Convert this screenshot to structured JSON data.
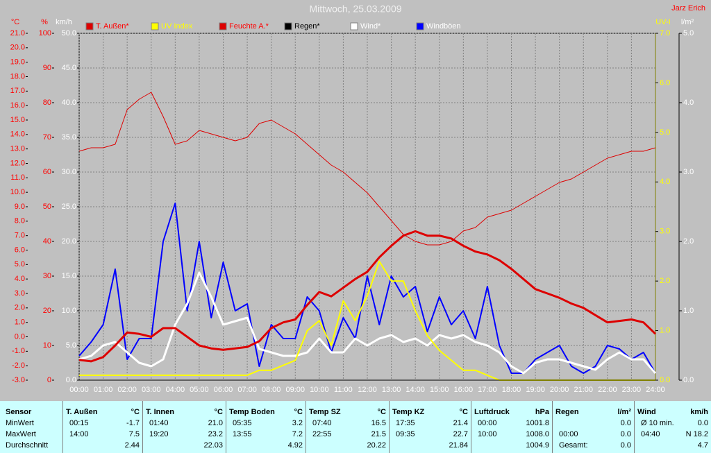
{
  "chart_data": {
    "type": "line",
    "title": "Mittwoch, 25.03.2009",
    "author": "Jarz Erich",
    "xlim": [
      0,
      24
    ],
    "xticks": [
      {
        "value": 0,
        "label": "00:00"
      },
      {
        "value": 1,
        "label": "01:00"
      },
      {
        "value": 2,
        "label": "02:00"
      },
      {
        "value": 3,
        "label": "03:00"
      },
      {
        "value": 4,
        "label": "04:00"
      },
      {
        "value": 5,
        "label": "05:00"
      },
      {
        "value": 6,
        "label": "06:00"
      },
      {
        "value": 7,
        "label": "07:00"
      },
      {
        "value": 8,
        "label": "08:00"
      },
      {
        "value": 9,
        "label": "09:00"
      },
      {
        "value": 10,
        "label": "10:00"
      },
      {
        "value": 11,
        "label": "11:00"
      },
      {
        "value": 12,
        "label": "12:00"
      },
      {
        "value": 13,
        "label": "13:00"
      },
      {
        "value": 14,
        "label": "14:00"
      },
      {
        "value": 15,
        "label": "15:00"
      },
      {
        "value": 16,
        "label": "16:00"
      },
      {
        "value": 17,
        "label": "17:00"
      },
      {
        "value": 18,
        "label": "18:00"
      },
      {
        "value": 19,
        "label": "19:00"
      },
      {
        "value": 20,
        "label": "20:00"
      },
      {
        "value": 21,
        "label": "21:00"
      },
      {
        "value": 22,
        "label": "22:00"
      },
      {
        "value": 23,
        "label": "23:00"
      },
      {
        "value": 24,
        "label": "24:00"
      }
    ],
    "grid": true,
    "axes": [
      {
        "label": "°C",
        "color": "#ff0000",
        "side": "left",
        "lim": [
          -3,
          21
        ],
        "ticks": [
          {
            "value": -3,
            "label": "-3.0"
          },
          {
            "value": -2,
            "label": "-2.0"
          },
          {
            "value": -1,
            "label": "-1.0"
          },
          {
            "value": 0,
            "label": "0.0"
          },
          {
            "value": 1,
            "label": "1.0"
          },
          {
            "value": 2,
            "label": "2.0"
          },
          {
            "value": 3,
            "label": "3.0"
          },
          {
            "value": 4,
            "label": "4.0"
          },
          {
            "value": 5,
            "label": "5.0"
          },
          {
            "value": 6,
            "label": "6.0"
          },
          {
            "value": 7,
            "label": "7.0"
          },
          {
            "value": 8,
            "label": "8.0"
          },
          {
            "value": 9,
            "label": "9.0"
          },
          {
            "value": 10,
            "label": "10.0"
          },
          {
            "value": 11,
            "label": "11.0"
          },
          {
            "value": 12,
            "label": "12.0"
          },
          {
            "value": 13,
            "label": "13.0"
          },
          {
            "value": 14,
            "label": "14.0"
          },
          {
            "value": 15,
            "label": "15.0"
          },
          {
            "value": 16,
            "label": "16.0"
          },
          {
            "value": 17,
            "label": "17.0"
          },
          {
            "value": 18,
            "label": "18.0"
          },
          {
            "value": 19,
            "label": "19.0"
          },
          {
            "value": 20,
            "label": "20.0"
          },
          {
            "value": 21,
            "label": "21.0"
          }
        ]
      },
      {
        "label": "%",
        "color": "#ff0000",
        "side": "left",
        "lim": [
          0,
          100
        ],
        "ticks": [
          0,
          10,
          20,
          30,
          40,
          50,
          60,
          70,
          80,
          90,
          100
        ]
      },
      {
        "label": "km/h",
        "color": "#ffffff",
        "side": "left",
        "lim": [
          0,
          50
        ],
        "ticks": [
          {
            "value": 0,
            "label": "0.0"
          },
          {
            "value": 5,
            "label": "5.0"
          },
          {
            "value": 10,
            "label": "10.0"
          },
          {
            "value": 15,
            "label": "15.0"
          },
          {
            "value": 20,
            "label": "20.0"
          },
          {
            "value": 25,
            "label": "25.0"
          },
          {
            "value": 30,
            "label": "30.0"
          },
          {
            "value": 35,
            "label": "35.0"
          },
          {
            "value": 40,
            "label": "40.0"
          },
          {
            "value": 45,
            "label": "45.0"
          },
          {
            "value": 50,
            "label": "50.0"
          }
        ]
      },
      {
        "label": "UV-I",
        "color": "#ffff00",
        "side": "right",
        "lim": [
          0,
          7
        ],
        "ticks": [
          {
            "value": 0,
            "label": "0.0"
          },
          {
            "value": 1,
            "label": "1.0"
          },
          {
            "value": 2,
            "label": "2.0"
          },
          {
            "value": 3,
            "label": "3.0"
          },
          {
            "value": 4,
            "label": "4.0"
          },
          {
            "value": 5,
            "label": "5.0"
          },
          {
            "value": 6,
            "label": "6.0"
          },
          {
            "value": 7,
            "label": "7.0"
          }
        ]
      },
      {
        "label": "l/m²",
        "color": "#ffffff",
        "side": "right",
        "lim": [
          0,
          5
        ],
        "ticks": [
          {
            "value": 0,
            "label": "0.0"
          },
          {
            "value": 1,
            "label": "1.0"
          },
          {
            "value": 2,
            "label": "2.0"
          },
          {
            "value": 3,
            "label": "3.0"
          },
          {
            "value": 4,
            "label": "4.0"
          },
          {
            "value": 5,
            "label": "5.0"
          }
        ]
      }
    ],
    "x": [
      0,
      0.5,
      1,
      1.5,
      2,
      2.5,
      3,
      3.5,
      4,
      4.5,
      5,
      5.5,
      6,
      6.5,
      7,
      7.5,
      8,
      8.5,
      9,
      9.5,
      10,
      10.5,
      11,
      11.5,
      12,
      12.5,
      13,
      13.5,
      14,
      14.5,
      15,
      15.5,
      16,
      16.5,
      17,
      17.5,
      18,
      18.5,
      19,
      19.5,
      20,
      20.5,
      21,
      21.5,
      22,
      22.5,
      23,
      23.5,
      24
    ],
    "series": [
      {
        "name": "T. Außen*",
        "color": "#dd0000",
        "label_color": "#ff0000",
        "axis": 0,
        "line_width": 3,
        "values": [
          -1.6,
          -1.7,
          -1.4,
          -0.6,
          0.3,
          0.2,
          0.0,
          0.6,
          0.6,
          0.0,
          -0.6,
          -0.8,
          -0.9,
          -0.8,
          -0.7,
          -0.3,
          0.6,
          1.0,
          1.2,
          2.2,
          3.1,
          2.8,
          3.4,
          4.0,
          4.5,
          5.5,
          6.3,
          7.0,
          7.3,
          7.0,
          7.0,
          6.8,
          6.3,
          5.9,
          5.7,
          5.3,
          4.7,
          4.0,
          3.3,
          3.0,
          2.7,
          2.3,
          2.0,
          1.5,
          1.0,
          1.1,
          1.2,
          1.0,
          0.2
        ]
      },
      {
        "name": "UV Index",
        "color": "#ffff00",
        "label_color": "#ffff00",
        "axis": 3,
        "line_width": 2,
        "values": [
          0.1,
          0.1,
          0.1,
          0.1,
          0.1,
          0.1,
          0.1,
          0.1,
          0.1,
          0.1,
          0.1,
          0.1,
          0.1,
          0.1,
          0.1,
          0.2,
          0.2,
          0.3,
          0.4,
          1.0,
          1.2,
          0.7,
          1.6,
          1.2,
          1.7,
          2.4,
          2.0,
          2.0,
          1.4,
          0.9,
          0.6,
          0.4,
          0.2,
          0.2,
          0.1,
          0.0,
          0.0,
          0.0,
          0.0,
          0.0,
          0.0,
          0.0,
          0.0,
          0.0,
          0.0,
          0.0,
          0.0,
          0.0,
          0.0
        ]
      },
      {
        "name": "Feuchte A.*",
        "color": "#dd0000",
        "label_color": "#ff0000",
        "axis": 1,
        "line_width": 1,
        "values": [
          66,
          67,
          67,
          68,
          78,
          81,
          83,
          76,
          68,
          69,
          72,
          71,
          70,
          69,
          70,
          74,
          75,
          73,
          71,
          68,
          65,
          62,
          60,
          57,
          54,
          50,
          46,
          42,
          40,
          39,
          39,
          40,
          43,
          44,
          47,
          48,
          49,
          51,
          53,
          55,
          57,
          58,
          60,
          62,
          64,
          65,
          66,
          66,
          67
        ]
      },
      {
        "name": "Regen*",
        "color": "#000000",
        "label_color": "#000000",
        "axis": 4,
        "line_width": 1,
        "values": [
          0,
          0,
          0,
          0,
          0,
          0,
          0,
          0,
          0,
          0,
          0,
          0,
          0,
          0,
          0,
          0,
          0,
          0,
          0,
          0,
          0,
          0,
          0,
          0,
          0,
          0,
          0,
          0,
          0,
          0,
          0,
          0,
          0,
          0,
          0,
          0,
          0,
          0,
          0,
          0,
          0,
          0,
          0,
          0,
          0,
          0,
          0,
          0,
          0
        ]
      },
      {
        "name": "Wind*",
        "color": "#ffffff",
        "label_color": "#ffffff",
        "axis": 2,
        "line_width": 3,
        "values": [
          3.0,
          3.5,
          5.0,
          5.5,
          4.0,
          2.5,
          2.0,
          3.0,
          8.0,
          11.0,
          15.5,
          12.0,
          8.0,
          8.5,
          9.0,
          4.5,
          4.0,
          3.5,
          3.5,
          4.0,
          6.0,
          4.0,
          4.0,
          6.0,
          5.0,
          6.0,
          6.5,
          5.5,
          6.0,
          5.0,
          6.5,
          6.0,
          6.5,
          5.5,
          5.0,
          4.0,
          2.0,
          1.0,
          2.5,
          3.0,
          3.0,
          2.5,
          2.0,
          1.5,
          3.0,
          4.0,
          3.0,
          3.0,
          1.0
        ]
      },
      {
        "name": "Windböen",
        "color": "#0000ff",
        "label_color": "#ffffff",
        "axis": 2,
        "line_width": 2,
        "values": [
          3.5,
          5.5,
          8.0,
          16.0,
          3.0,
          6.0,
          6.0,
          20.0,
          25.5,
          10.0,
          20.0,
          9.0,
          17.0,
          10.0,
          11.0,
          2.0,
          8.0,
          6.0,
          6.0,
          12.0,
          10.0,
          4.0,
          9.0,
          6.0,
          15.0,
          8.0,
          15.0,
          12.0,
          13.5,
          7.0,
          12.0,
          8.0,
          10.0,
          6.0,
          13.5,
          5.0,
          1.0,
          1.0,
          3.0,
          4.0,
          5.0,
          2.0,
          1.0,
          2.0,
          5.0,
          4.5,
          3.0,
          4.0,
          1.0
        ]
      }
    ]
  },
  "table": {
    "first_column": [
      "Sensor",
      "MinWert",
      "MaxWert",
      "Durchschnitt"
    ],
    "sections": [
      {
        "title": "T. Außen",
        "unit": "°C",
        "rows": [
          {
            "time": "00:15",
            "value": "-1.7"
          },
          {
            "time": "14:00",
            "value": "7.5"
          },
          {
            "value": "2.44"
          }
        ]
      },
      {
        "title": "T. Innen",
        "unit": "°C",
        "rows": [
          {
            "time": "01:40",
            "value": "21.0"
          },
          {
            "time": "19:20",
            "value": "23.2"
          },
          {
            "value": "22.03"
          }
        ]
      },
      {
        "title": "Temp Boden",
        "unit": "°C",
        "rows": [
          {
            "time": "05:35",
            "value": "3.2"
          },
          {
            "time": "13:55",
            "value": "7.2"
          },
          {
            "value": "4.92"
          }
        ]
      },
      {
        "title": "Temp SZ",
        "unit": "°C",
        "rows": [
          {
            "time": "07:40",
            "value": "16.5"
          },
          {
            "time": "22:55",
            "value": "21.5"
          },
          {
            "value": "20.22"
          }
        ]
      },
      {
        "title": "Temp KZ",
        "unit": "°C",
        "rows": [
          {
            "time": "17:35",
            "value": "21.4"
          },
          {
            "time": "09:35",
            "value": "22.7"
          },
          {
            "value": "21.84"
          }
        ]
      },
      {
        "title": "Luftdruck",
        "unit": "hPa",
        "rows": [
          {
            "time": "00:00",
            "value": "1001.8"
          },
          {
            "time": "10:00",
            "value": "1008.0"
          },
          {
            "value": "1004.9"
          }
        ]
      },
      {
        "title": "Regen",
        "unit": "l/m²",
        "rows": [
          {
            "value": "0.0"
          },
          {
            "time": "00:00",
            "value": "0.0"
          },
          {
            "time": "Gesamt:",
            "value": "0.0"
          }
        ]
      },
      {
        "title": "Wind",
        "unit": "km/h",
        "rows": [
          {
            "time": "Ø 10 min.",
            "value": "0.0"
          },
          {
            "time": "04:40",
            "value": "N 18.2"
          },
          {
            "value": "4.7"
          }
        ]
      }
    ]
  }
}
